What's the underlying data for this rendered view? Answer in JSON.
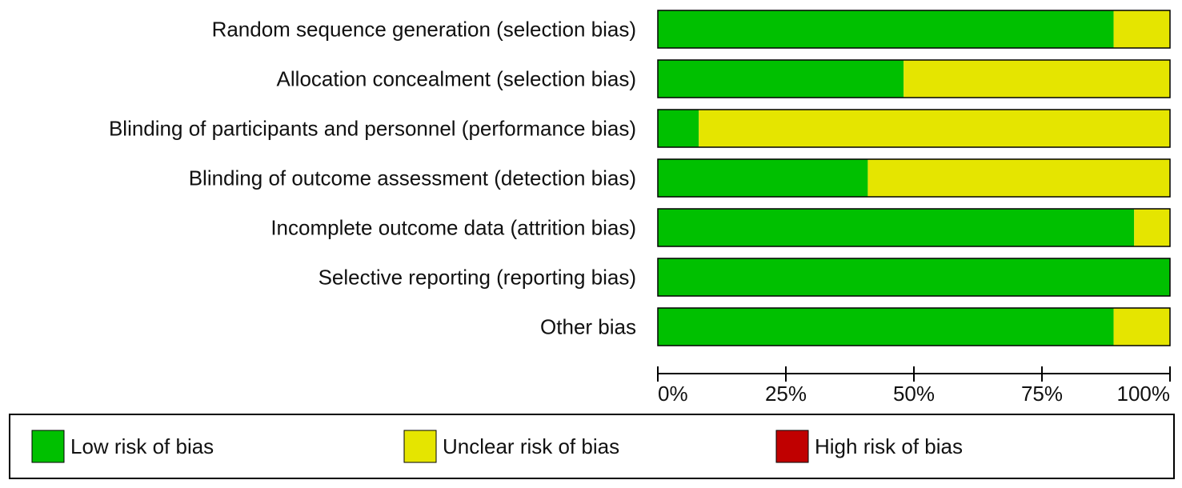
{
  "chart_data": {
    "type": "stacked-bar-horizontal",
    "categories": [
      "Random sequence generation (selection bias)",
      "Allocation concealment (selection bias)",
      "Blinding of participants and personnel (performance bias)",
      "Blinding of outcome assessment (detection bias)",
      "Incomplete outcome data (attrition bias)",
      "Selective reporting (reporting bias)",
      "Other bias"
    ],
    "series": [
      {
        "name": "Low risk of bias",
        "color": "#00c000",
        "values": [
          89,
          48,
          8,
          41,
          93,
          100,
          89
        ]
      },
      {
        "name": "Unclear risk of bias",
        "color": "#e5e500",
        "values": [
          11,
          52,
          92,
          59,
          7,
          0,
          11
        ]
      },
      {
        "name": "High risk of bias",
        "color": "#c00000",
        "values": [
          0,
          0,
          0,
          0,
          0,
          0,
          0
        ]
      }
    ],
    "xlim": [
      0,
      100
    ],
    "xticks": [
      {
        "value": 0,
        "label": "0%"
      },
      {
        "value": 25,
        "label": "25%"
      },
      {
        "value": 50,
        "label": "50%"
      },
      {
        "value": 75,
        "label": "75%"
      },
      {
        "value": 100,
        "label": "100%"
      }
    ],
    "legend": "bottom"
  }
}
